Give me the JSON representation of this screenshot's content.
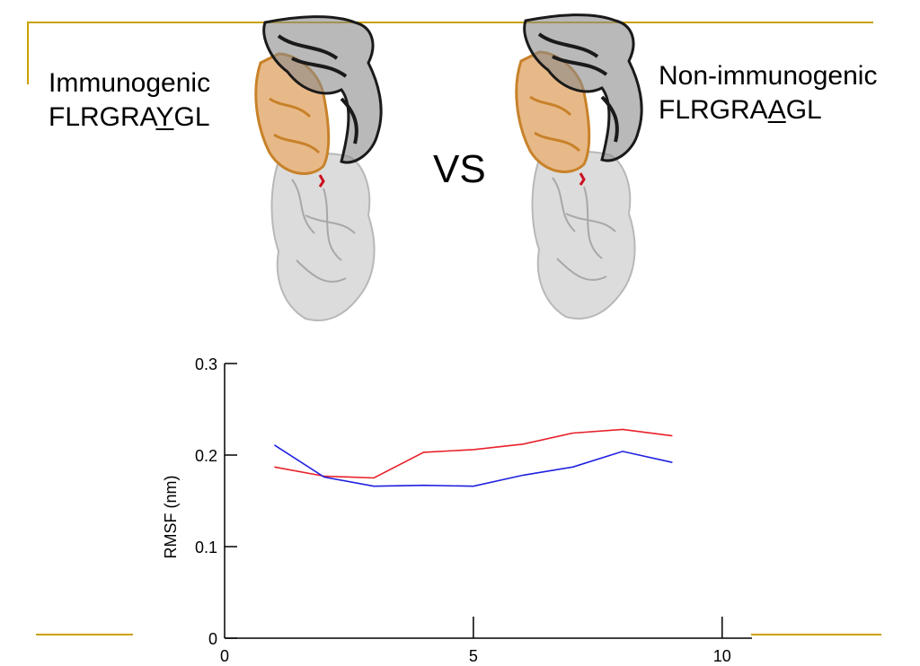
{
  "slide": {
    "left_label": {
      "line1": "Immunogenic",
      "seq_pre": "FLRGRA",
      "seq_mut": "Y",
      "seq_post": "GL"
    },
    "right_label": {
      "line1": "Non-immunogenic",
      "seq_pre": "FLRGRA",
      "seq_mut": "A",
      "seq_post": "GL"
    },
    "vs_text": "VS",
    "accent_color": "#c9a100"
  },
  "structures": [
    {
      "name": "immunogenic-complex",
      "colors": {
        "chain_a": "#1a1a1a",
        "chain_b": "#c8822a",
        "peptide": "#cc1020",
        "mhc": "#d0d0d0"
      }
    },
    {
      "name": "non-immunogenic-complex",
      "colors": {
        "chain_a": "#1a1a1a",
        "chain_b": "#c8822a",
        "peptide": "#cc1020",
        "mhc": "#d0d0d0"
      }
    }
  ],
  "chart_data": {
    "type": "line",
    "title": "",
    "xlabel": "",
    "ylabel": "RMSF (nm)",
    "xlim": [
      0,
      10.6
    ],
    "ylim": [
      0,
      0.3
    ],
    "xticks": [
      0,
      5,
      10
    ],
    "xtick_labels": [
      "0",
      "5",
      "10"
    ],
    "yticks": [
      0,
      0.1,
      0.2,
      0.3
    ],
    "ytick_labels": [
      "0",
      "0.1",
      "0.2",
      "0.3"
    ],
    "grid": false,
    "series": [
      {
        "color": "#e8202a",
        "x": [
          1,
          2,
          3,
          4,
          5,
          6,
          7,
          8,
          9
        ],
        "y": [
          0.187,
          0.177,
          0.175,
          0.203,
          0.206,
          0.212,
          0.224,
          0.228,
          0.221
        ]
      },
      {
        "color": "#2020e0",
        "x": [
          1,
          2,
          3,
          4,
          5,
          6,
          7,
          8,
          9
        ],
        "y": [
          0.211,
          0.176,
          0.166,
          0.167,
          0.166,
          0.178,
          0.187,
          0.204,
          0.192
        ]
      }
    ]
  }
}
